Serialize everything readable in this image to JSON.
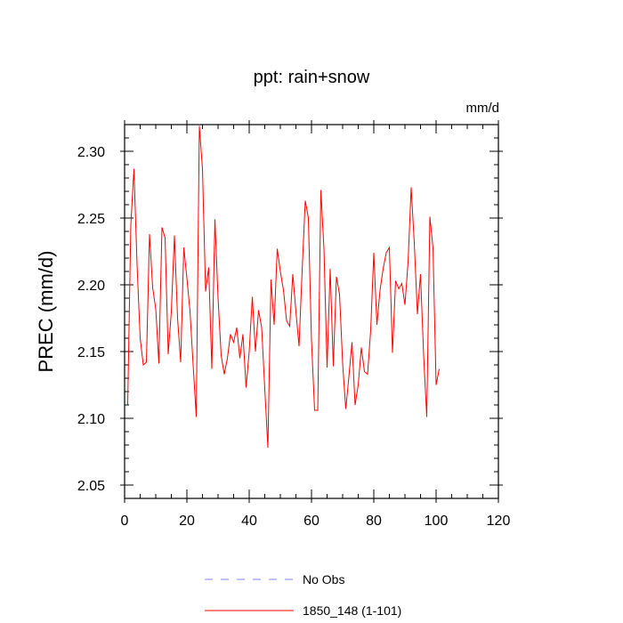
{
  "chart_data": {
    "type": "line",
    "title": "ppt: rain+snow",
    "units": "mm/d",
    "ylabel": "PREC  (mm/d)",
    "xlabel": "",
    "xlim": [
      0,
      120
    ],
    "ylim": [
      2.04,
      2.32
    ],
    "x_ticks": [
      0,
      20,
      40,
      60,
      80,
      100,
      120
    ],
    "y_ticks": [
      2.05,
      2.1,
      2.15,
      2.2,
      2.25,
      2.3
    ],
    "y_tick_labels": [
      "2.05",
      "2.10",
      "2.15",
      "2.20",
      "2.25",
      "2.30"
    ],
    "x_tick_labels": [
      "0",
      "20",
      "40",
      "60",
      "80",
      "100",
      "120"
    ],
    "grid": false,
    "legend_placement": "bottom",
    "legend": [
      {
        "name": "No Obs",
        "color": "#8080ff",
        "dash": true
      },
      {
        "name": "1850_148 (1-101)",
        "color": "#ff0000",
        "dash": false
      }
    ],
    "series": [
      {
        "name": "1850_148 (1-101)",
        "color": "#ff0000",
        "x": [
          1,
          2,
          3,
          4,
          5,
          6,
          7,
          8,
          9,
          10,
          11,
          12,
          13,
          14,
          15,
          16,
          17,
          18,
          19,
          20,
          21,
          22,
          23,
          24,
          25,
          26,
          27,
          28,
          29,
          30,
          31,
          32,
          33,
          34,
          35,
          36,
          37,
          38,
          39,
          40,
          41,
          42,
          43,
          44,
          45,
          46,
          47,
          48,
          49,
          50,
          51,
          52,
          53,
          54,
          55,
          56,
          57,
          58,
          59,
          60,
          61,
          62,
          63,
          64,
          65,
          66,
          67,
          68,
          69,
          70,
          71,
          72,
          73,
          74,
          75,
          76,
          77,
          78,
          79,
          80,
          81,
          82,
          83,
          84,
          85,
          86,
          87,
          88,
          89,
          90,
          91,
          92,
          93,
          94,
          95,
          96,
          97,
          98,
          99,
          100,
          101
        ],
        "values": [
          2.11,
          2.245,
          2.287,
          2.215,
          2.16,
          2.14,
          2.142,
          2.238,
          2.198,
          2.182,
          2.141,
          2.243,
          2.235,
          2.148,
          2.18,
          2.237,
          2.175,
          2.142,
          2.228,
          2.205,
          2.18,
          2.14,
          2.101,
          2.319,
          2.287,
          2.195,
          2.213,
          2.137,
          2.249,
          2.19,
          2.147,
          2.133,
          2.145,
          2.163,
          2.157,
          2.168,
          2.145,
          2.163,
          2.123,
          2.15,
          2.191,
          2.15,
          2.181,
          2.168,
          2.122,
          2.078,
          2.204,
          2.17,
          2.227,
          2.21,
          2.196,
          2.173,
          2.169,
          2.208,
          2.18,
          2.154,
          2.211,
          2.263,
          2.25,
          2.158,
          2.106,
          2.106,
          2.271,
          2.227,
          2.138,
          2.212,
          2.139,
          2.206,
          2.193,
          2.141,
          2.107,
          2.131,
          2.157,
          2.11,
          2.125,
          2.153,
          2.135,
          2.133,
          2.166,
          2.224,
          2.17,
          2.196,
          2.212,
          2.224,
          2.228,
          2.149,
          2.203,
          2.197,
          2.201,
          2.185,
          2.217,
          2.273,
          2.231,
          2.178,
          2.208,
          2.147,
          2.101,
          2.251,
          2.228,
          2.125,
          2.137
        ]
      }
    ]
  }
}
